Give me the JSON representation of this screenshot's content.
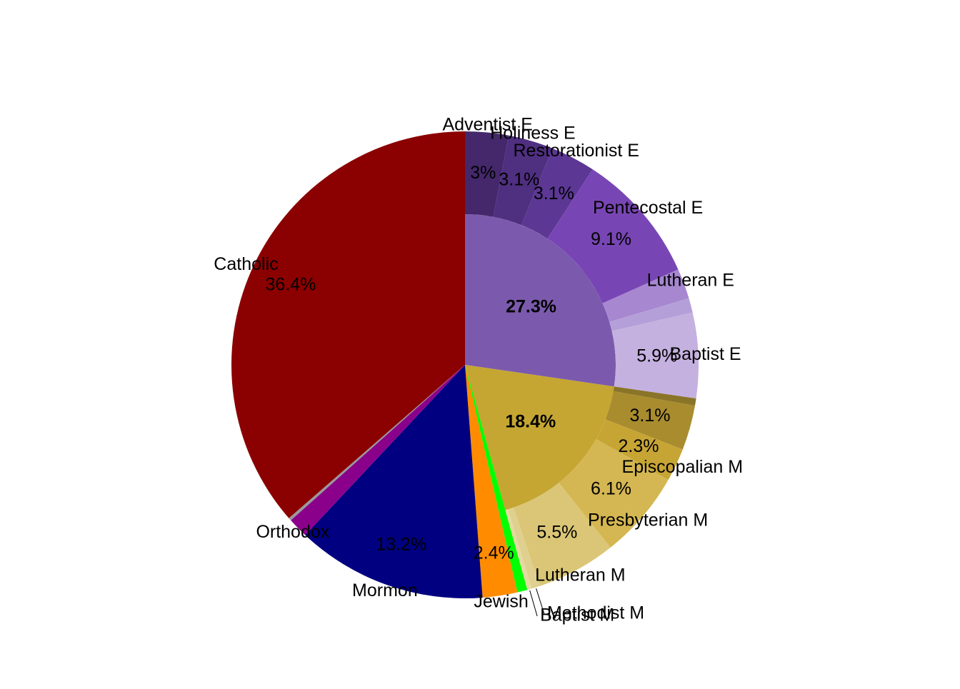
{
  "chart_data": {
    "type": "sunburst",
    "groups": [
      {
        "name": null,
        "value": 27.3,
        "value_label": "27.3%",
        "color": "#7b5aad",
        "children": [
          {
            "name": "Adventist E",
            "value": 3.0,
            "value_label": "3%",
            "color": "#44286b"
          },
          {
            "name": "Holiness E",
            "value": 3.1,
            "value_label": "3.1%",
            "color": "#4f2f80"
          },
          {
            "name": "Restorationist E",
            "value": 3.1,
            "value_label": "3.1%",
            "color": "#5c3794"
          },
          {
            "name": "Pentecostal E",
            "value": 9.1,
            "value_label": "9.1%",
            "color": "#7846b4"
          },
          {
            "name": "Lutheran E",
            "value": 2.1,
            "value_label": null,
            "color": "#a787d0"
          },
          {
            "name": null,
            "value": 1.0,
            "value_label": null,
            "color": "#b59fd8"
          },
          {
            "name": "Baptist E",
            "value": 5.9,
            "value_label": "5.9%",
            "color": "#c5b1e0"
          }
        ]
      },
      {
        "name": null,
        "value": 18.4,
        "value_label": "18.4%",
        "color": "#c5a632",
        "children": [
          {
            "name": null,
            "value": 0.5,
            "value_label": null,
            "color": "#8a7428"
          },
          {
            "name": null,
            "value": 3.1,
            "value_label": "3.1%",
            "color": "#a88c2e"
          },
          {
            "name": "Episcopalian M",
            "value": 2.3,
            "value_label": "2.3%",
            "color": "#c7a535"
          },
          {
            "name": "Presbyterian M",
            "value": 6.1,
            "value_label": "6.1%",
            "color": "#d4b752"
          },
          {
            "name": "Lutheran M",
            "value": 5.5,
            "value_label": "5.5%",
            "color": "#dac676"
          },
          {
            "name": "Methodist M",
            "value": 0.6,
            "value_label": null,
            "color": "#e0d08f"
          },
          {
            "name": "Baptist M",
            "value": 0.3,
            "value_label": null,
            "color": "#e6d9a0"
          }
        ]
      },
      {
        "name": null,
        "value": 0.7,
        "value_label": null,
        "color": "#00ff00"
      },
      {
        "name": "Jewish",
        "value": 2.4,
        "value_label": "2.4%",
        "color": "#ff8c00"
      },
      {
        "name": "Mormon",
        "value": 13.2,
        "value_label": "13.2%",
        "color": "#000080"
      },
      {
        "name": "Orthodox",
        "value": 1.4,
        "value_label": null,
        "color": "#8b008b"
      },
      {
        "name": null,
        "value": 0.2,
        "value_label": null,
        "color": "#999999"
      },
      {
        "name": "Catholic",
        "value": 36.4,
        "value_label": "36.4%",
        "color": "#8b0000"
      }
    ]
  }
}
